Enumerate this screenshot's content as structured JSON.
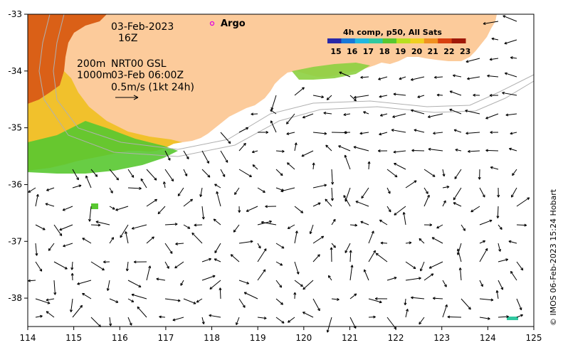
{
  "map": {
    "x_axis": {
      "ticks": [
        "114",
        "115",
        "116",
        "117",
        "118",
        "119",
        "120",
        "121",
        "122",
        "123",
        "124",
        "125"
      ]
    },
    "y_axis": {
      "ticks": [
        "-33",
        "-34",
        "-35",
        "-36",
        "-37",
        "-38"
      ]
    },
    "extent": {
      "lon": [
        114,
        125
      ],
      "lat": [
        -38.5,
        -33
      ]
    },
    "colors": {
      "land": "#fccb9b",
      "ocean": "#ffffff",
      "warm_water": "#d85a10",
      "mid_water": "#f0c020",
      "cool_water": "#58c830",
      "contour": "#b0b0b0",
      "argo_marker": "#e000e0"
    }
  },
  "annotations": {
    "date": "03-Feb-2023",
    "time": "16Z",
    "depth_200": "200m",
    "depth_1000": "1000m",
    "product": "NRT00 GSL",
    "product_time": "03-Feb 06:00Z",
    "scale_label": "0.5m/s (1kt 24h)",
    "argo_label": "Argo",
    "credit": "© IMOS 06-Feb-2023 15:24 Hobart"
  },
  "colorbar": {
    "title": "4h comp, p50, All Sats",
    "ticks": [
      "15",
      "16",
      "17",
      "18",
      "19",
      "20",
      "21",
      "22",
      "23"
    ],
    "colors": [
      "#2828a8",
      "#1878d8",
      "#20b8e0",
      "#30c8a0",
      "#58c830",
      "#b8e020",
      "#f0d020",
      "#f09020",
      "#d84010",
      "#a01808"
    ]
  }
}
